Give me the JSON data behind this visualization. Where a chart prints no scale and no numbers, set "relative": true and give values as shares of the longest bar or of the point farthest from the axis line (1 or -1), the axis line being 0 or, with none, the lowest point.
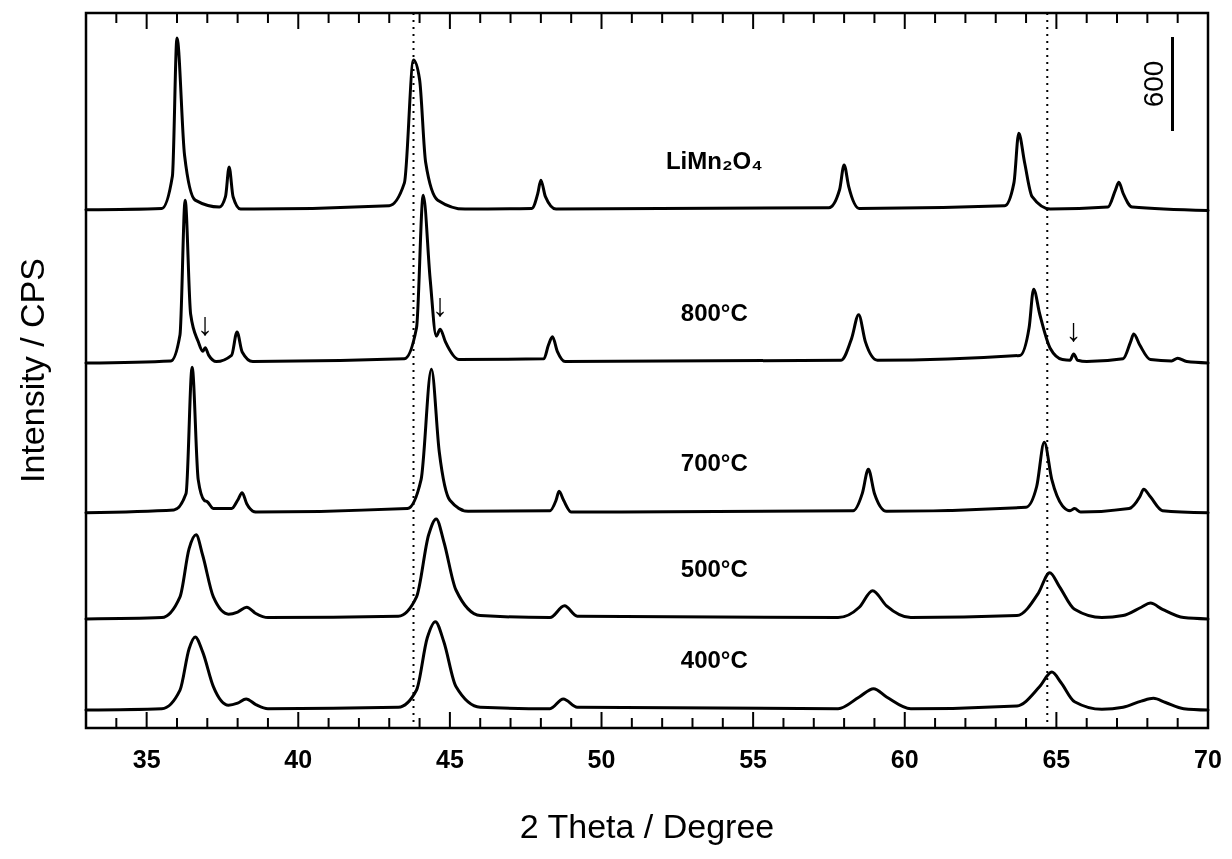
{
  "chart_data": {
    "type": "line",
    "relative": true,
    "xlabel": "2 Theta / Degree",
    "ylabel": "Intensity / CPS",
    "xlim": [
      33,
      70
    ],
    "xticks": [
      {
        "value": 34,
        "label": null
      },
      35,
      {
        "value": 36,
        "label": null
      },
      {
        "value": 37,
        "label": null
      },
      {
        "value": 38,
        "label": null
      },
      {
        "value": 39,
        "label": null
      },
      40,
      {
        "value": 41,
        "label": null
      },
      {
        "value": 42,
        "label": null
      },
      {
        "value": 43,
        "label": null
      },
      {
        "value": 44,
        "label": null
      },
      45,
      {
        "value": 46,
        "label": null
      },
      {
        "value": 47,
        "label": null
      },
      {
        "value": 48,
        "label": null
      },
      {
        "value": 49,
        "label": null
      },
      50,
      {
        "value": 51,
        "label": null
      },
      {
        "value": 52,
        "label": null
      },
      {
        "value": 53,
        "label": null
      },
      {
        "value": 54,
        "label": null
      },
      55,
      {
        "value": 56,
        "label": null
      },
      {
        "value": 57,
        "label": null
      },
      {
        "value": 58,
        "label": null
      },
      {
        "value": 59,
        "label": null
      },
      60,
      {
        "value": 61,
        "label": null
      },
      {
        "value": 62,
        "label": null
      },
      {
        "value": 63,
        "label": null
      },
      {
        "value": 64,
        "label": null
      },
      65,
      {
        "value": 66,
        "label": null
      },
      {
        "value": 67,
        "label": null
      },
      {
        "value": 68,
        "label": null
      },
      {
        "value": 69,
        "label": null
      },
      70
    ],
    "legend": false,
    "grid": false,
    "marker": "none",
    "line_style": "solid",
    "series": [
      {
        "name": "LiMn₂O₄",
        "color": "#000000",
        "x": [
          33,
          35.5,
          35.85,
          36.0,
          36.25,
          36.6,
          37.4,
          37.6,
          37.72,
          37.85,
          38.1,
          43.0,
          43.5,
          43.8,
          44.0,
          44.2,
          44.6,
          45.5,
          47.7,
          47.9,
          48.0,
          48.15,
          48.5,
          57.5,
          57.85,
          58.0,
          58.15,
          58.5,
          63.3,
          63.6,
          63.76,
          63.95,
          64.2,
          64.8,
          66.7,
          66.95,
          67.06,
          67.2,
          67.5,
          70
        ],
        "values": [
          0.751,
          0.753,
          0.8,
          1.0,
          0.83,
          0.765,
          0.755,
          0.77,
          0.813,
          0.77,
          0.752,
          0.757,
          0.79,
          0.968,
          0.94,
          0.82,
          0.765,
          0.752,
          0.753,
          0.775,
          0.794,
          0.77,
          0.752,
          0.754,
          0.78,
          0.816,
          0.785,
          0.753,
          0.757,
          0.79,
          0.862,
          0.82,
          0.77,
          0.752,
          0.755,
          0.78,
          0.791,
          0.775,
          0.755,
          0.75
        ]
      },
      {
        "name": "800°C",
        "color": "#000000",
        "x": [
          33,
          35.8,
          36.1,
          36.27,
          36.45,
          36.7,
          36.85,
          36.93,
          37.05,
          37.3,
          37.8,
          37.98,
          38.15,
          38.5,
          43.5,
          43.9,
          44.12,
          44.35,
          44.55,
          44.68,
          44.85,
          45.3,
          48.1,
          48.25,
          48.38,
          48.55,
          48.8,
          57.9,
          58.25,
          58.48,
          58.7,
          59.1,
          63.8,
          64.1,
          64.25,
          64.45,
          64.8,
          65.2,
          65.45,
          65.57,
          65.7,
          66.0,
          67.2,
          67.45,
          67.55,
          67.75,
          68.1,
          68.8,
          69.0,
          69.3,
          70
        ],
        "values": [
          0.529,
          0.532,
          0.57,
          0.765,
          0.6,
          0.56,
          0.546,
          0.551,
          0.54,
          0.531,
          0.54,
          0.574,
          0.545,
          0.531,
          0.535,
          0.58,
          0.772,
          0.65,
          0.568,
          0.578,
          0.56,
          0.534,
          0.535,
          0.555,
          0.567,
          0.545,
          0.531,
          0.533,
          0.565,
          0.599,
          0.56,
          0.533,
          0.54,
          0.58,
          0.636,
          0.6,
          0.55,
          0.534,
          0.533,
          0.542,
          0.533,
          0.531,
          0.535,
          0.56,
          0.571,
          0.555,
          0.534,
          0.532,
          0.536,
          0.531,
          0.529
        ]
      },
      {
        "name": "700°C",
        "color": "#000000",
        "x": [
          33,
          35.9,
          36.3,
          36.5,
          36.7,
          36.9,
          37.0,
          37.2,
          37.8,
          38.0,
          38.15,
          38.3,
          38.6,
          43.6,
          44.05,
          44.39,
          44.65,
          45.0,
          45.6,
          48.3,
          48.5,
          48.6,
          48.75,
          49.0,
          58.3,
          58.6,
          58.8,
          59.0,
          59.4,
          64.0,
          64.35,
          64.6,
          64.85,
          65.2,
          65.45,
          65.6,
          65.8,
          67.4,
          67.75,
          67.88,
          68.1,
          68.5,
          70
        ],
        "values": [
          0.312,
          0.316,
          0.34,
          0.523,
          0.36,
          0.33,
          0.328,
          0.318,
          0.318,
          0.33,
          0.341,
          0.325,
          0.313,
          0.318,
          0.36,
          0.52,
          0.4,
          0.33,
          0.314,
          0.315,
          0.33,
          0.343,
          0.33,
          0.313,
          0.315,
          0.34,
          0.375,
          0.34,
          0.314,
          0.32,
          0.35,
          0.414,
          0.36,
          0.322,
          0.315,
          0.318,
          0.313,
          0.318,
          0.335,
          0.346,
          0.335,
          0.315,
          0.312
        ]
      },
      {
        "name": "500°C",
        "color": "#000000",
        "x": [
          33,
          35.5,
          36.1,
          36.4,
          36.63,
          36.85,
          37.2,
          37.7,
          38.0,
          38.3,
          38.6,
          39.0,
          43.3,
          43.9,
          44.3,
          44.55,
          44.8,
          45.2,
          46.0,
          48.3,
          48.78,
          49.2,
          57.8,
          58.5,
          58.94,
          59.4,
          60.2,
          63.7,
          64.4,
          64.78,
          65.1,
          65.6,
          66.5,
          67.2,
          67.8,
          68.1,
          68.5,
          69.2,
          70
        ],
        "values": [
          0.158,
          0.16,
          0.19,
          0.26,
          0.28,
          0.25,
          0.19,
          0.165,
          0.168,
          0.175,
          0.166,
          0.16,
          0.162,
          0.19,
          0.28,
          0.303,
          0.27,
          0.2,
          0.163,
          0.16,
          0.177,
          0.162,
          0.16,
          0.175,
          0.199,
          0.177,
          0.16,
          0.163,
          0.195,
          0.225,
          0.205,
          0.172,
          0.16,
          0.163,
          0.175,
          0.181,
          0.172,
          0.16,
          0.158
        ]
      },
      {
        "name": "400°C",
        "color": "#000000",
        "x": [
          33,
          35.5,
          36.1,
          36.4,
          36.6,
          36.85,
          37.2,
          37.7,
          38.0,
          38.28,
          38.6,
          39.0,
          43.3,
          43.9,
          44.25,
          44.52,
          44.8,
          45.2,
          46.0,
          48.3,
          48.74,
          49.2,
          57.8,
          58.5,
          58.97,
          59.4,
          60.2,
          63.7,
          64.45,
          64.85,
          65.15,
          65.6,
          66.5,
          67.2,
          67.8,
          68.2,
          68.6,
          69.2,
          70
        ],
        "values": [
          0.026,
          0.028,
          0.055,
          0.115,
          0.132,
          0.11,
          0.06,
          0.033,
          0.036,
          0.042,
          0.034,
          0.028,
          0.03,
          0.055,
          0.13,
          0.154,
          0.125,
          0.06,
          0.03,
          0.028,
          0.042,
          0.03,
          0.028,
          0.045,
          0.057,
          0.045,
          0.028,
          0.032,
          0.06,
          0.081,
          0.066,
          0.038,
          0.027,
          0.03,
          0.039,
          0.043,
          0.037,
          0.028,
          0.026
        ]
      }
    ],
    "ref_lines": [
      {
        "axis": "x",
        "value": 43.8,
        "color": "#000000",
        "line_style": "dotted"
      },
      {
        "axis": "x",
        "value": 64.7,
        "color": "#000000",
        "line_style": "dotted"
      }
    ],
    "annotations": [
      "600",
      {
        "text": "↓",
        "x": 36.93,
        "y": 0.551
      },
      {
        "text": "↓",
        "x": 44.68,
        "y": 0.578
      },
      {
        "text": "↓",
        "x": 65.57,
        "y": 0.542
      }
    ]
  }
}
